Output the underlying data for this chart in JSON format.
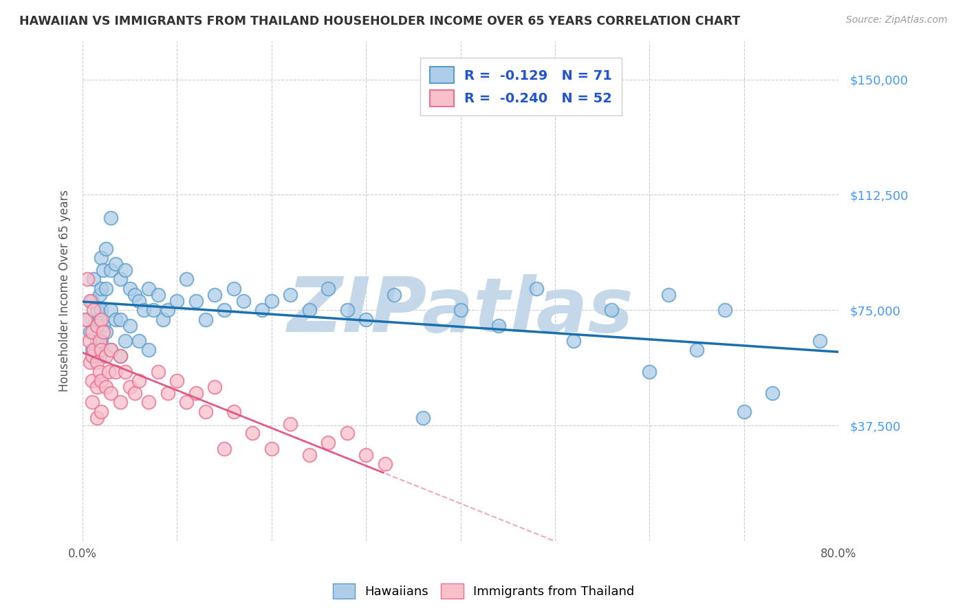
{
  "title": "HAWAIIAN VS IMMIGRANTS FROM THAILAND HOUSEHOLDER INCOME OVER 65 YEARS CORRELATION CHART",
  "source": "Source: ZipAtlas.com",
  "ylabel": "Householder Income Over 65 years",
  "ylim": [
    0,
    162500
  ],
  "xlim": [
    0,
    0.8
  ],
  "yticks": [
    0,
    37500,
    75000,
    112500,
    150000
  ],
  "ytick_labels": [
    "",
    "$37,500",
    "$75,000",
    "$112,500",
    "$150,000"
  ],
  "hawaiians_R": -0.129,
  "hawaiians_N": 71,
  "thailand_R": -0.24,
  "thailand_N": 52,
  "blue_scatter_face": "#aecde8",
  "blue_scatter_edge": "#5b9dc9",
  "pink_scatter_face": "#f9c0cb",
  "pink_scatter_edge": "#e87090",
  "blue_line_color": "#1a6faf",
  "pink_line_color": "#e05080",
  "watermark": "ZIPatlas",
  "watermark_color": "#c5d8ea",
  "grid_color": "#cccccc",
  "right_label_color": "#4499ff",
  "hawaiians_x": [
    0.005,
    0.008,
    0.01,
    0.01,
    0.012,
    0.015,
    0.015,
    0.018,
    0.018,
    0.018,
    0.02,
    0.02,
    0.02,
    0.02,
    0.022,
    0.022,
    0.025,
    0.025,
    0.025,
    0.03,
    0.03,
    0.03,
    0.03,
    0.035,
    0.035,
    0.04,
    0.04,
    0.04,
    0.045,
    0.045,
    0.05,
    0.05,
    0.055,
    0.06,
    0.06,
    0.065,
    0.07,
    0.07,
    0.075,
    0.08,
    0.085,
    0.09,
    0.1,
    0.11,
    0.12,
    0.13,
    0.14,
    0.15,
    0.16,
    0.17,
    0.19,
    0.2,
    0.22,
    0.24,
    0.26,
    0.28,
    0.3,
    0.33,
    0.36,
    0.4,
    0.44,
    0.48,
    0.52,
    0.56,
    0.6,
    0.62,
    0.65,
    0.68,
    0.7,
    0.73,
    0.78
  ],
  "hawaiians_y": [
    72000,
    68000,
    78000,
    62000,
    85000,
    75000,
    65000,
    80000,
    72000,
    60000,
    92000,
    82000,
    75000,
    65000,
    88000,
    70000,
    95000,
    82000,
    68000,
    105000,
    88000,
    75000,
    62000,
    90000,
    72000,
    85000,
    72000,
    60000,
    88000,
    65000,
    82000,
    70000,
    80000,
    78000,
    65000,
    75000,
    82000,
    62000,
    75000,
    80000,
    72000,
    75000,
    78000,
    85000,
    78000,
    72000,
    80000,
    75000,
    82000,
    78000,
    75000,
    78000,
    80000,
    75000,
    82000,
    75000,
    72000,
    80000,
    40000,
    75000,
    70000,
    82000,
    65000,
    75000,
    55000,
    80000,
    62000,
    75000,
    42000,
    48000,
    65000
  ],
  "thailand_x": [
    0.003,
    0.005,
    0.007,
    0.008,
    0.008,
    0.01,
    0.01,
    0.01,
    0.01,
    0.012,
    0.012,
    0.015,
    0.015,
    0.015,
    0.015,
    0.018,
    0.018,
    0.02,
    0.02,
    0.02,
    0.02,
    0.022,
    0.025,
    0.025,
    0.028,
    0.03,
    0.03,
    0.035,
    0.04,
    0.04,
    0.045,
    0.05,
    0.055,
    0.06,
    0.07,
    0.08,
    0.09,
    0.1,
    0.11,
    0.12,
    0.13,
    0.14,
    0.15,
    0.16,
    0.18,
    0.2,
    0.22,
    0.24,
    0.26,
    0.28,
    0.3,
    0.32
  ],
  "thailand_y": [
    72000,
    85000,
    65000,
    78000,
    58000,
    68000,
    60000,
    52000,
    45000,
    75000,
    62000,
    70000,
    58000,
    50000,
    40000,
    65000,
    55000,
    72000,
    62000,
    52000,
    42000,
    68000,
    60000,
    50000,
    55000,
    62000,
    48000,
    55000,
    60000,
    45000,
    55000,
    50000,
    48000,
    52000,
    45000,
    55000,
    48000,
    52000,
    45000,
    48000,
    42000,
    50000,
    30000,
    42000,
    35000,
    30000,
    38000,
    28000,
    32000,
    35000,
    28000,
    25000
  ]
}
